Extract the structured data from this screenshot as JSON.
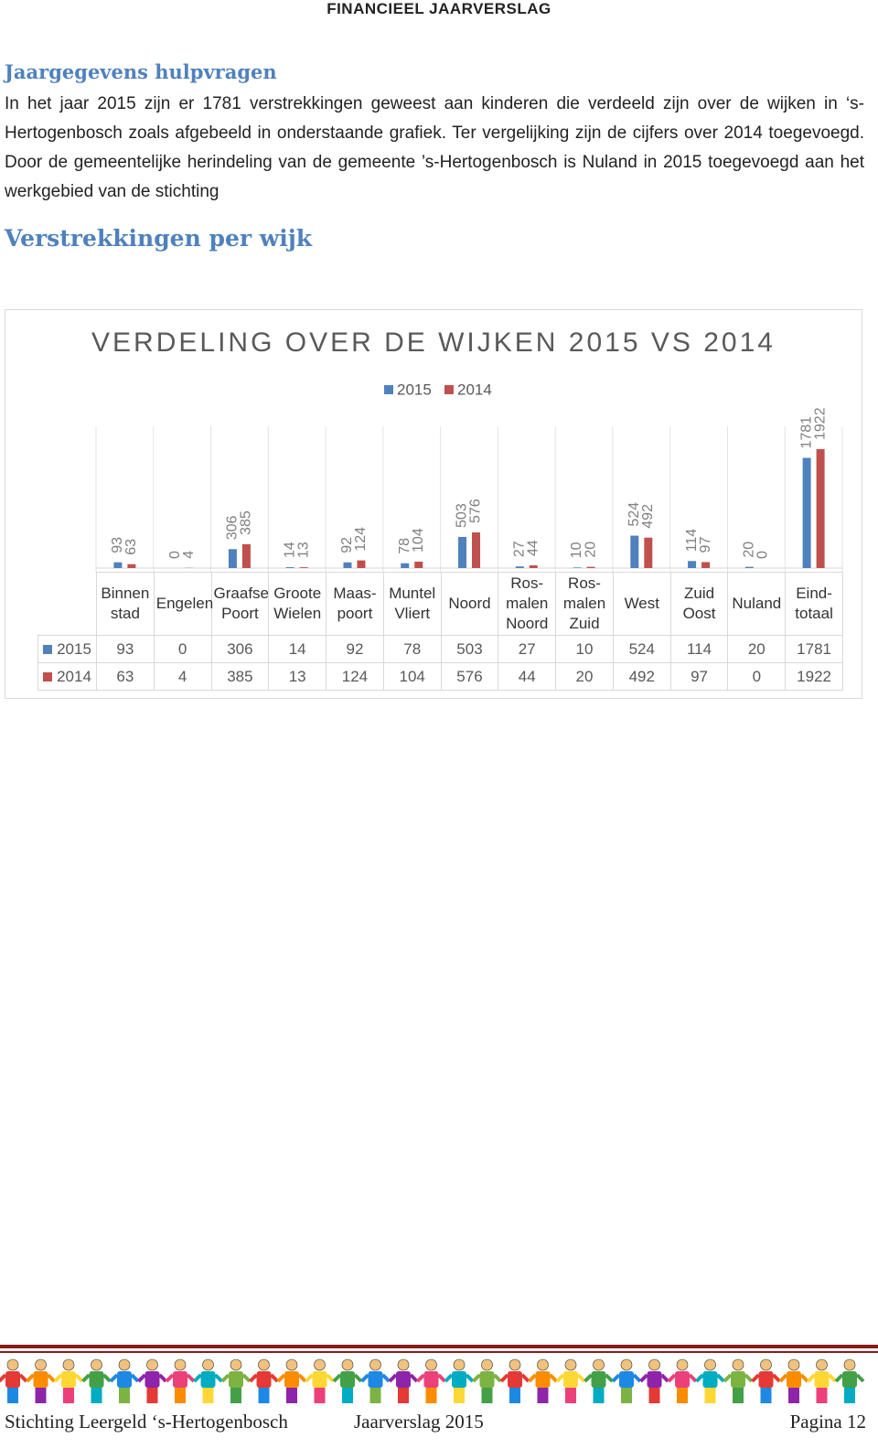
{
  "header": {
    "title": "FINANCIEEL JAARVERSLAG"
  },
  "section": {
    "heading": "Jaargegevens hulpvragen",
    "paragraph": "In het jaar 2015 zijn er 1781 verstrekkingen geweest aan kinderen die verdeeld zijn over de wijken in ‘s-Hertogenbosch zoals afgebeeld in onderstaande grafiek. Ter vergelijking zijn de cijfers over 2014 toegevoegd. Door de gemeentelijke herindeling van de gemeente ’s-Hertogenbosch is Nuland in 2015 toegevoegd aan het werkgebied van de stichting",
    "subheading": "Verstrekkingen per wijk"
  },
  "chart_data": {
    "type": "bar",
    "title": "VERDELING OVER DE WIJKEN 2015 VS 2014",
    "categories": [
      "Binnen stad",
      "Engelen",
      "Graafse Poort",
      "Groote Wielen",
      "Maas-poort",
      "Muntel Vliert",
      "Noord",
      "Ros-malen Noord",
      "Ros-malen Zuid",
      "West",
      "Zuid Oost",
      "Nuland",
      "Eind-totaal"
    ],
    "series": [
      {
        "name": "2015",
        "color": "#4f81bd",
        "values": [
          93,
          0,
          306,
          14,
          92,
          78,
          503,
          27,
          10,
          524,
          114,
          20,
          1781
        ]
      },
      {
        "name": "2014",
        "color": "#c0504d",
        "values": [
          63,
          4,
          385,
          13,
          124,
          104,
          576,
          44,
          20,
          492,
          97,
          0,
          1922
        ]
      }
    ],
    "legend": "top",
    "data_table": true
  },
  "footer": {
    "left": "Stichting Leergeld ‘s-Hertogenbosch",
    "center": "Jaarverslag 2015",
    "right": "Pagina 12"
  }
}
